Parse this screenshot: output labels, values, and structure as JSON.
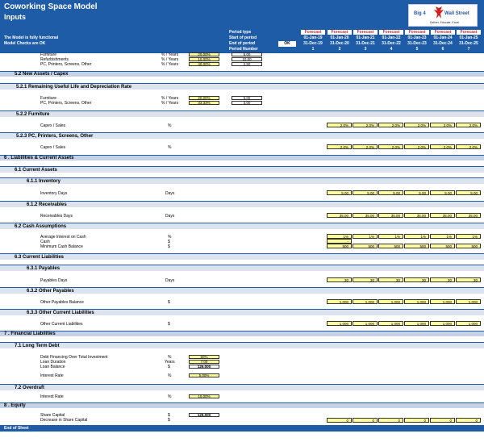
{
  "header": {
    "title": "Coworking Space Model",
    "subtitle": "Inputs",
    "status1": "The Model is fully functional",
    "status2": "Model Checks are OK",
    "period_labels": [
      "Period type",
      "Start of period",
      "End of period",
      "Period Number"
    ],
    "ok_label": "OK"
  },
  "periods": [
    {
      "type": "Forecast",
      "start": "01-Jan-19",
      "end": "31-Dec-19",
      "num": "1"
    },
    {
      "type": "Forecast",
      "start": "01-Jan-20",
      "end": "31-Dec-20",
      "num": "2"
    },
    {
      "type": "Forecast",
      "start": "01-Jan-21",
      "end": "31-Dec-21",
      "num": "3"
    },
    {
      "type": "Forecast",
      "start": "01-Jan-22",
      "end": "31-Dec-22",
      "num": "4"
    },
    {
      "type": "Forecast",
      "start": "01-Jan-23",
      "end": "31-Dec-23",
      "num": "5"
    },
    {
      "type": "Forecast",
      "start": "01-Jan-24",
      "end": "31-Dec-24",
      "num": "6"
    },
    {
      "type": "Forecast",
      "start": "01-Jan-25",
      "end": "31-Dec-25",
      "num": "7"
    }
  ],
  "logo": {
    "left": "Big 4",
    "right": "Wall Street",
    "tagline": "Deliver, Educate, Excel"
  },
  "top_rows": [
    {
      "label": "Furniture",
      "unit": "% / Years",
      "input": "20.00%",
      "value": "5.00"
    },
    {
      "label": "Refurbishments",
      "unit": "% / Years",
      "input": "10.00%",
      "value": "10.00"
    },
    {
      "label": "PC, Printers, Screens, Other",
      "unit": "% / Years",
      "input": "40.00%",
      "value": "2.50"
    }
  ],
  "s52": {
    "title": "5.2   New Assets / Capex"
  },
  "s521": {
    "title": "5.2.1 Remaining Useful Life and Depreciation Rate",
    "rows": [
      {
        "label": "Furniture",
        "unit": "% / Years",
        "input": "20.00%",
        "value": "5.00"
      },
      {
        "label": "PC, Printers, Screens, Other",
        "unit": "% / Years",
        "input": "33.33%",
        "value": "3.00"
      }
    ]
  },
  "s522": {
    "title": "5.2.2 Furniture",
    "label": "Capex / Sales",
    "unit": "%",
    "values": [
      "2.0%",
      "2.0%",
      "2.0%",
      "2.0%",
      "2.0%",
      "2.0%"
    ]
  },
  "s523": {
    "title": "5.2.3 PC, Printers, Screens, Other",
    "label": "Capex / Sales",
    "unit": "%",
    "values": [
      "2.0%",
      "2.0%",
      "2.0%",
      "2.0%",
      "2.0%",
      "2.0%"
    ]
  },
  "s6": {
    "title": "6 .  Liabilities & Current Assets"
  },
  "s61": {
    "title": "6.1   Current Assets"
  },
  "s611": {
    "title": "6.1.1 Inventory",
    "label": "Inventory Days",
    "unit": "Days",
    "values": [
      "5.00",
      "5.00",
      "5.00",
      "5.00",
      "5.00",
      "5.00"
    ]
  },
  "s612": {
    "title": "6.1.2 Receivables",
    "label": "Receivables Days",
    "unit": "Days",
    "values": [
      "35.00",
      "35.00",
      "35.00",
      "35.00",
      "35.00",
      "35.00"
    ]
  },
  "s62": {
    "title": "6.2   Cash Assumptions",
    "rows": [
      {
        "label": "Average Interest on Cash",
        "unit": "%",
        "values": [
          "1%",
          "1%",
          "1%",
          "1%",
          "1%",
          "1%"
        ]
      },
      {
        "label": "Cash",
        "unit": "$",
        "values": [
          "-",
          "",
          "",
          "",
          "",
          ""
        ]
      },
      {
        "label": "Minimum Cash Balance",
        "unit": "$",
        "values": [
          "500",
          "500",
          "500",
          "500",
          "500",
          "500"
        ]
      }
    ]
  },
  "s63": {
    "title": "6.3   Current Liabilities"
  },
  "s631": {
    "title": "6.3.1 Payables",
    "label": "Payables Days",
    "unit": "Days",
    "values": [
      "30",
      "30",
      "30",
      "30",
      "30",
      "30"
    ]
  },
  "s632": {
    "title": "6.3.2 Other Payables",
    "label": "Other Payables Balance",
    "unit": "$",
    "values": [
      "1,000",
      "1,000",
      "1,000",
      "1,000",
      "1,000",
      "1,000"
    ]
  },
  "s633": {
    "title": "6.3.3 Other Current Liabilities",
    "label": "Other Current Liabilities",
    "unit": "$",
    "values": [
      "1,000",
      "1,000",
      "1,000",
      "1,000",
      "1,000",
      "1,000"
    ]
  },
  "s7": {
    "title": "7 .  Financial Liabilities"
  },
  "s71": {
    "title": "7.1   Long Term Debt",
    "rows": [
      {
        "label": "Debt Financing Over Total Investment",
        "unit": "%",
        "value": "50%"
      },
      {
        "label": "Loan Duration",
        "unit": "Years",
        "value": "7.00"
      },
      {
        "label": "Loan Balance",
        "unit": "$",
        "value": "126,000"
      },
      {
        "label": "Interest Rate",
        "unit": "%",
        "value": "5.00%"
      }
    ]
  },
  "s72": {
    "title": "7.2   Overdraft",
    "label": "Interest Rate",
    "unit": "%",
    "value": "10.00%"
  },
  "s8": {
    "title": "8 .  Equity",
    "rows": [
      {
        "label": "Share Capital",
        "unit": "$",
        "value": "126,000"
      },
      {
        "label": "Decrease in Share Capital",
        "unit": "$",
        "values": [
          "0",
          "0",
          "0",
          "0",
          "0",
          "0"
        ]
      }
    ]
  },
  "footer": {
    "label": "End of Sheet"
  }
}
